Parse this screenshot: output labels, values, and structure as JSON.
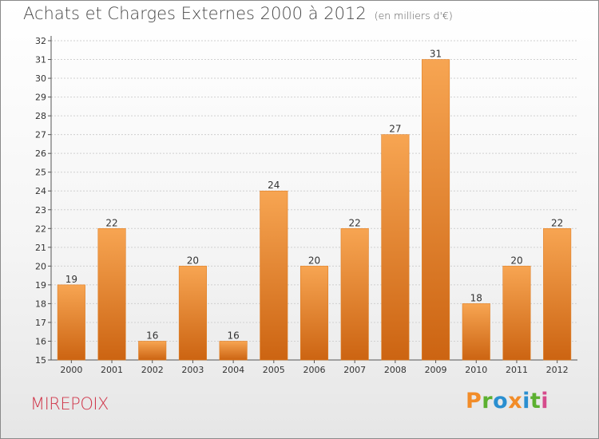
{
  "title": "Achats et Charges Externes 2000 à 2012",
  "subtitle": "(en milliers d'€)",
  "town": "MIREPOIX",
  "logo": {
    "text": "Proxiti",
    "colors": [
      "#f28c28",
      "#5cb030",
      "#2a8fd0",
      "#f28c28",
      "#2a8fd0",
      "#5cb030",
      "#d64b8c"
    ]
  },
  "colors": {
    "bar_top": "#f7a552",
    "bar_bottom": "#cc6412",
    "grid": "#d0d0d0",
    "axis": "#555555",
    "town": "#d0364a"
  },
  "chart_data": {
    "type": "bar",
    "title": "Achats et Charges Externes 2000 à 2012",
    "subtitle": "(en milliers d'€)",
    "xlabel": "",
    "ylabel": "",
    "categories": [
      "2000",
      "2001",
      "2002",
      "2003",
      "2004",
      "2005",
      "2006",
      "2007",
      "2008",
      "2009",
      "2010",
      "2011",
      "2012"
    ],
    "values": [
      19,
      22,
      16,
      20,
      16,
      24,
      20,
      22,
      27,
      31,
      18,
      20,
      22
    ],
    "ylim": [
      15,
      32
    ],
    "yticks": [
      15,
      16,
      17,
      18,
      19,
      20,
      21,
      22,
      23,
      24,
      25,
      26,
      27,
      28,
      29,
      30,
      31,
      32
    ],
    "grid": "horizontal",
    "legend": "none"
  }
}
